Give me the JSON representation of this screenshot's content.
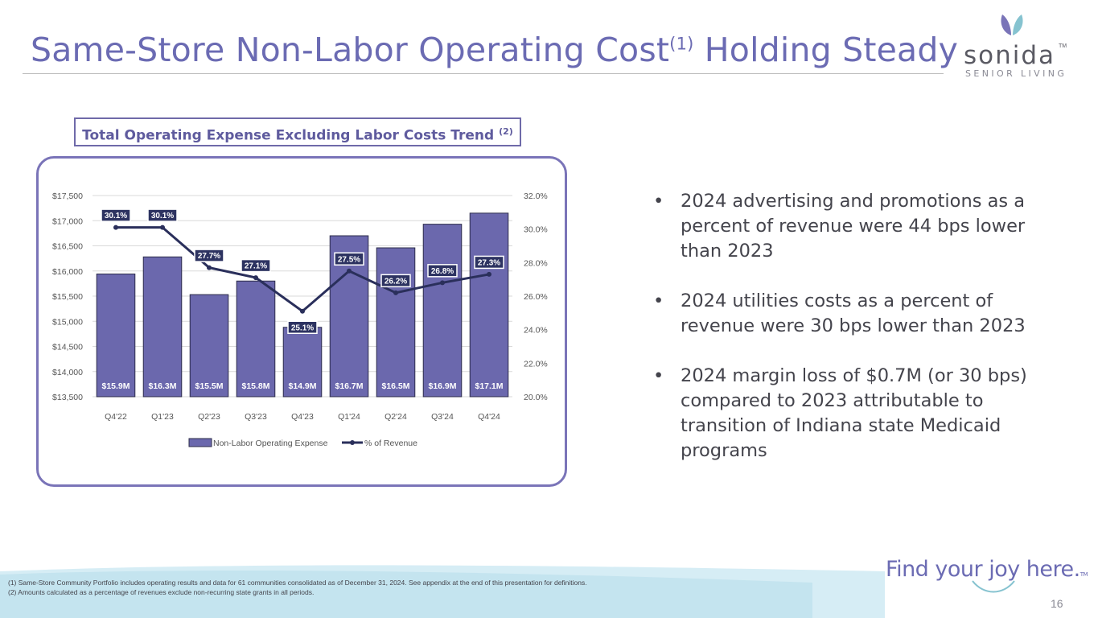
{
  "slide": {
    "title_main": "Same-Store Non-Labor Operating Cost",
    "title_sup": "(1)",
    "title_tail": " Holding Steady",
    "page_number": "16"
  },
  "logo": {
    "word": "sonida",
    "tm": "TM",
    "subtitle": "SENIOR LIVING",
    "colors": {
      "leaf_left": "#7a74b8",
      "leaf_right": "#86c3d0"
    }
  },
  "chart_box": {
    "title": "Total Operating Expense Excluding Labor Costs Trend",
    "title_sup": "(2)"
  },
  "chart_data": {
    "type": "bar",
    "categories": [
      "Q4'22",
      "Q1'23",
      "Q2'23",
      "Q3'23",
      "Q4'23",
      "Q1'24",
      "Q2'24",
      "Q3'24",
      "Q4'24"
    ],
    "series": [
      {
        "name": "Non-Labor Operating Expense",
        "type": "bar",
        "axis": "left",
        "values": [
          15940,
          16280,
          15530,
          15800,
          14880,
          16700,
          16460,
          16930,
          17150
        ],
        "labels": [
          "$15.9M",
          "$16.3M",
          "$15.5M",
          "$15.8M",
          "$14.9M",
          "$16.7M",
          "$16.5M",
          "$16.9M",
          "$17.1M"
        ],
        "color": "#6b68ad"
      },
      {
        "name": "% of Revenue",
        "type": "line",
        "axis": "right",
        "values": [
          30.1,
          30.1,
          27.7,
          27.1,
          25.1,
          27.5,
          26.2,
          26.8,
          27.3
        ],
        "labels": [
          "30.1%",
          "30.1%",
          "27.7%",
          "27.1%",
          "25.1%",
          "27.5%",
          "26.2%",
          "26.8%",
          "27.3%"
        ],
        "color": "#2a2f5b"
      }
    ],
    "y_left": {
      "ylim": [
        13500,
        17500
      ],
      "ticks": [
        13500,
        14000,
        14500,
        15000,
        15500,
        16000,
        16500,
        17000,
        17500
      ],
      "tick_labels": [
        "$13,500",
        "$14,000",
        "$14,500",
        "$15,000",
        "$15,500",
        "$16,000",
        "$16,500",
        "$17,000",
        "$17,500"
      ]
    },
    "y_right": {
      "ylim": [
        20,
        32
      ],
      "ticks": [
        20,
        22,
        24,
        26,
        28,
        30,
        32
      ],
      "tick_labels": [
        "20.0%",
        "22.0%",
        "24.0%",
        "26.0%",
        "28.0%",
        "30.0%",
        "32.0%"
      ]
    },
    "legend": [
      "Non-Labor Operating Expense",
      "% of Revenue"
    ],
    "legend_position": "bottom",
    "grid": true
  },
  "bullets": [
    "2024 advertising and promotions as a percent of revenue were 44 bps lower than 2023",
    "2024 utilities costs as a percent of revenue were 30 bps lower than 2023",
    "2024 margin loss of $0.7M (or 30 bps) compared to 2023 attributable to transition of Indiana state Medicaid programs"
  ],
  "footnotes": [
    "(1) Same-Store Community Portfolio includes operating results and data for 61 communities consolidated as of December 31, 2024. See appendix at the end of this presentation for definitions.",
    "(2) Amounts calculated as a percentage of revenues exclude non-recurring state grants in all periods."
  ],
  "tagline": {
    "text": "Find your joy here.",
    "tm": "TM"
  },
  "colors": {
    "accent": "#6b6bb3",
    "bar": "#6b68ad",
    "line": "#2a2f5b",
    "wave": "#cfe9f2"
  }
}
